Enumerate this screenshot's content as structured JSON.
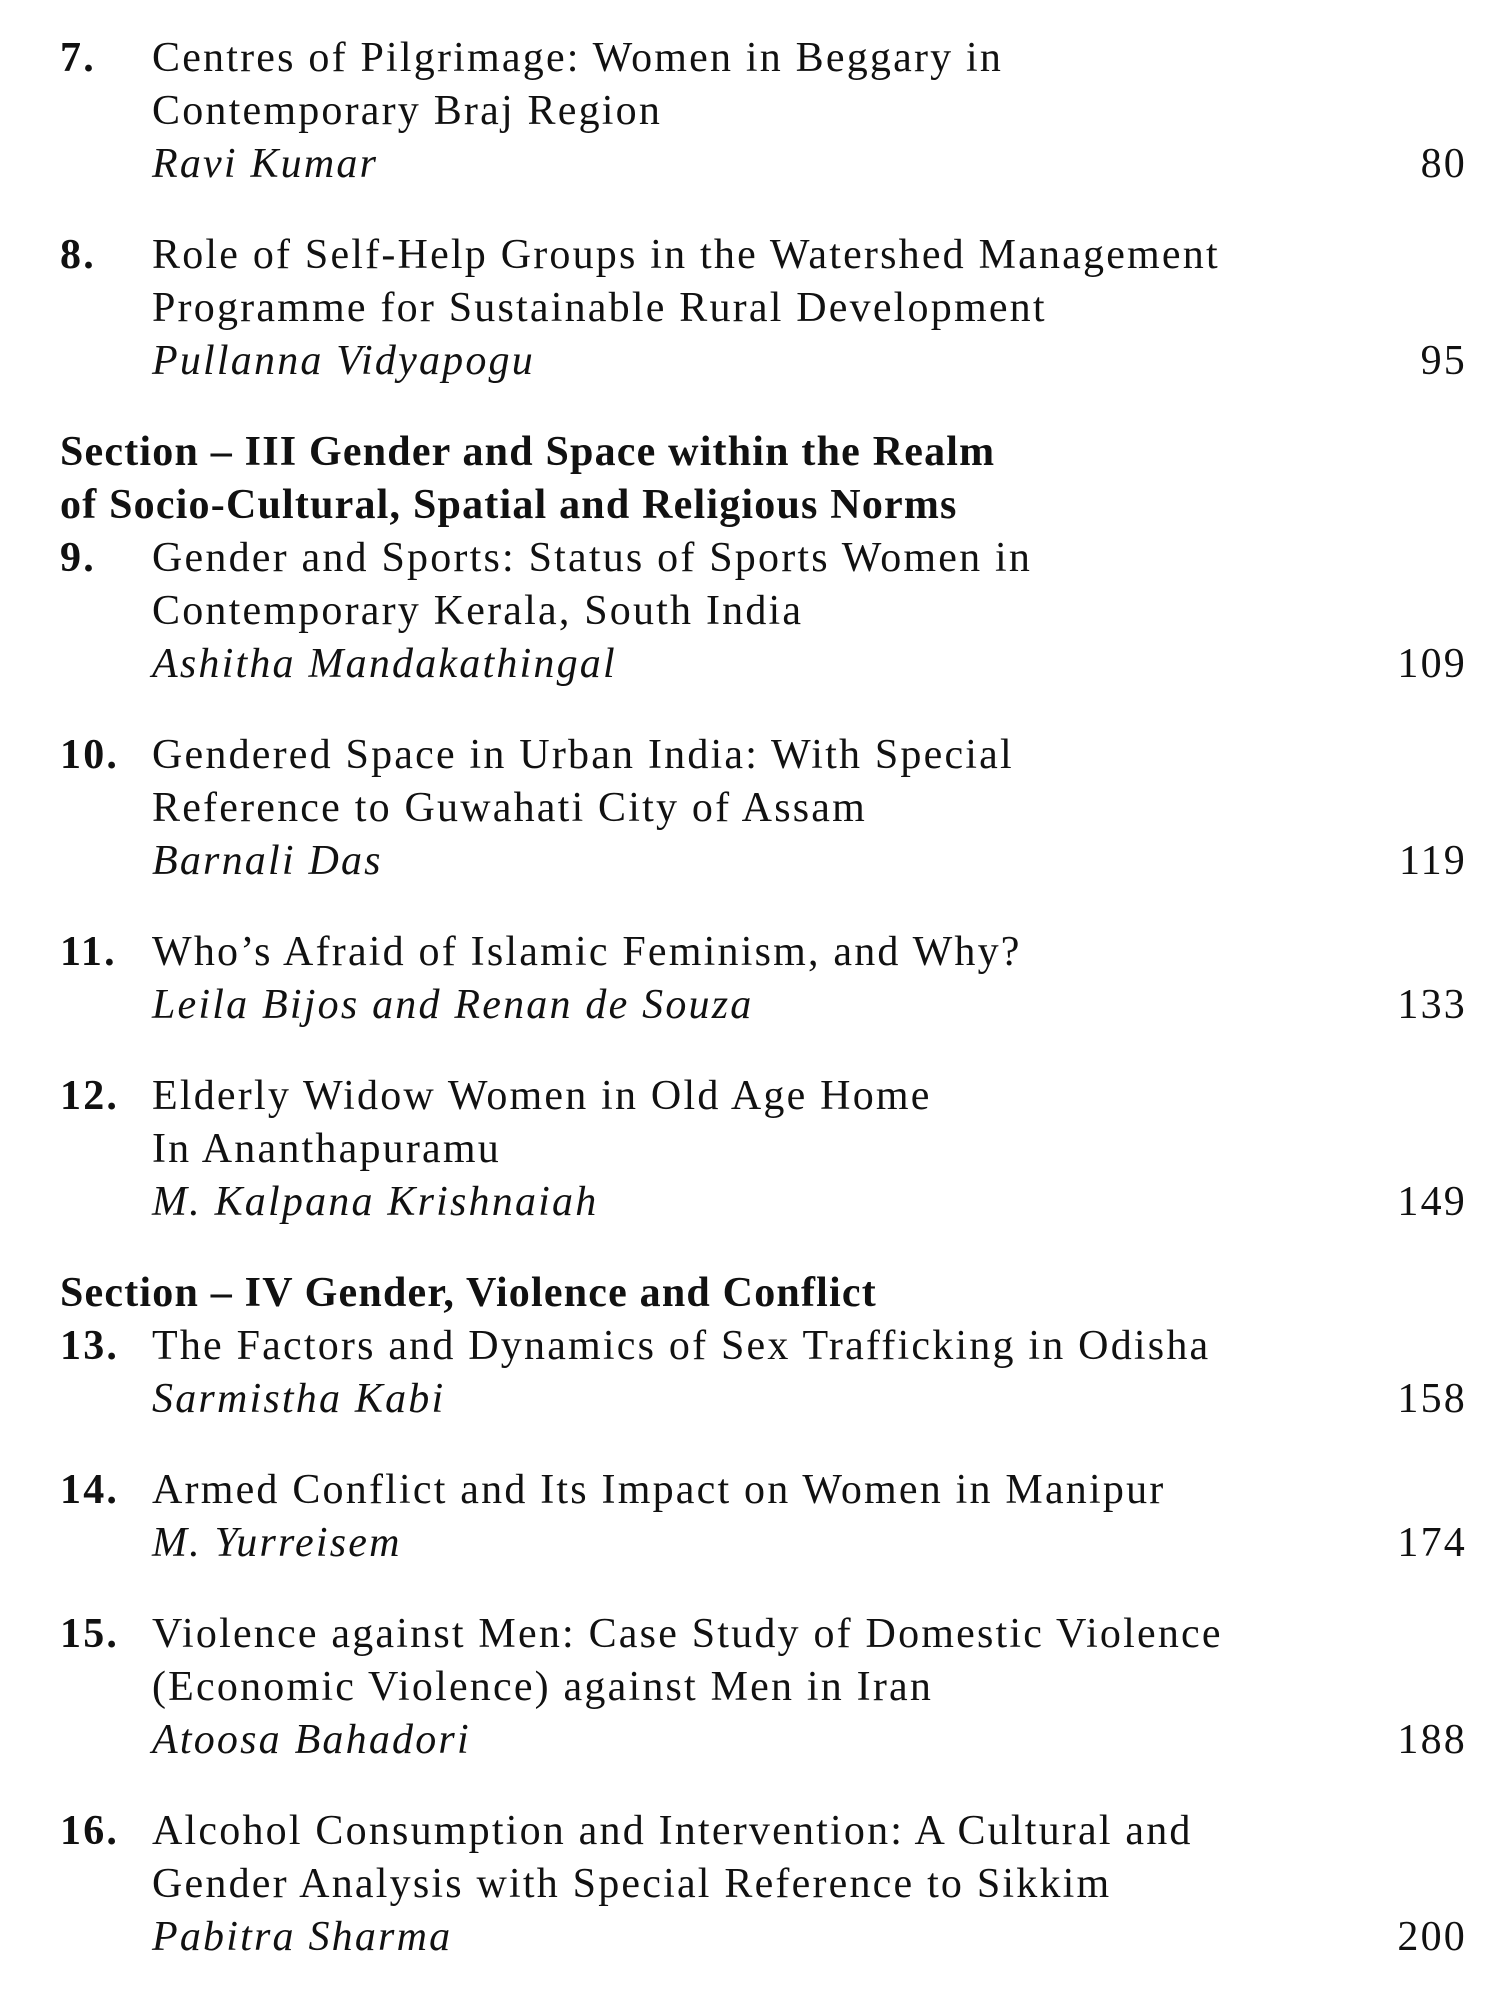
{
  "toc": [
    {
      "type": "entry",
      "num": "7.",
      "title": [
        "Centres of Pilgrimage: Women in Beggary in",
        "Contemporary Braj Region"
      ],
      "author": "Ravi Kumar",
      "page": "80"
    },
    {
      "type": "entry",
      "num": "8.",
      "title": [
        "Role of Self-Help Groups in the Watershed Management",
        "Programme for Sustainable Rural Development"
      ],
      "author": "Pullanna Vidyapogu",
      "page": "95"
    },
    {
      "type": "section",
      "lines": [
        "Section – III Gender and Space within the Realm",
        "of Socio-Cultural, Spatial and Religious Norms"
      ]
    },
    {
      "type": "entry",
      "num": "9.",
      "title": [
        "Gender and Sports: Status of Sports Women in",
        "Contemporary Kerala, South India"
      ],
      "author": "Ashitha Mandakathingal",
      "page": "109"
    },
    {
      "type": "entry",
      "num": "10.",
      "title": [
        "Gendered Space in Urban India: With Special",
        "Reference to Guwahati City of Assam"
      ],
      "author": "Barnali Das",
      "page": "119"
    },
    {
      "type": "entry",
      "num": "11.",
      "title": [
        "Who’s Afraid of Islamic Feminism, and Why?"
      ],
      "author": "Leila Bijos and Renan de Souza",
      "page": "133"
    },
    {
      "type": "entry",
      "num": "12.",
      "title": [
        "Elderly Widow Women in Old Age Home",
        "In Ananthapuramu"
      ],
      "author": "M. Kalpana Krishnaiah",
      "page": "149"
    },
    {
      "type": "section",
      "lines": [
        "Section – IV Gender, Violence and Conflict"
      ]
    },
    {
      "type": "entry",
      "num": "13.",
      "title": [
        "The Factors and Dynamics of Sex Trafficking in Odisha"
      ],
      "author": "Sarmistha Kabi",
      "page": "158"
    },
    {
      "type": "entry",
      "num": "14.",
      "title": [
        "Armed Conflict and Its Impact on Women in Manipur"
      ],
      "author": "M. Yurreisem",
      "page": "174"
    },
    {
      "type": "entry",
      "num": "15.",
      "title": [
        "Violence against Men: Case Study of Domestic Violence",
        "(Economic Violence) against Men in Iran"
      ],
      "author": "Atoosa Bahadori",
      "page": "188"
    },
    {
      "type": "entry",
      "num": "16.",
      "title": [
        "Alcohol Consumption and Intervention: A Cultural and",
        "Gender Analysis with Special Reference to Sikkim"
      ],
      "author": "Pabitra Sharma",
      "page": "200"
    }
  ]
}
